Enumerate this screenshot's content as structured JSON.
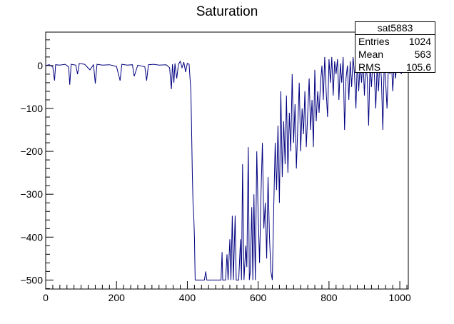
{
  "chart_data": {
    "type": "line",
    "title": "Saturation",
    "xlabel": "",
    "ylabel": "",
    "xlim": [
      0,
      1024
    ],
    "ylim": [
      -521,
      78
    ],
    "xticks": [
      0,
      200,
      400,
      600,
      800,
      1000
    ],
    "yticks": [
      0,
      -100,
      -200,
      -300,
      -400,
      -500
    ],
    "xtick_labels": [
      "0",
      "200",
      "400",
      "600",
      "800",
      "1000"
    ],
    "ytick_labels": [
      "0",
      "−100",
      "−200",
      "−300",
      "−400",
      "−500"
    ],
    "grid": false,
    "line_color": "#000080",
    "series": [
      {
        "points": [
          [
            0,
            0
          ],
          [
            10,
            2
          ],
          [
            20,
            -3
          ],
          [
            25,
            -35
          ],
          [
            28,
            2
          ],
          [
            40,
            1
          ],
          [
            55,
            3
          ],
          [
            65,
            -3
          ],
          [
            68,
            -45
          ],
          [
            72,
            3
          ],
          [
            85,
            1
          ],
          [
            90,
            -20
          ],
          [
            95,
            5
          ],
          [
            110,
            3
          ],
          [
            125,
            -10
          ],
          [
            135,
            2
          ],
          [
            140,
            -42
          ],
          [
            145,
            3
          ],
          [
            160,
            1
          ],
          [
            180,
            2
          ],
          [
            200,
            -2
          ],
          [
            210,
            -35
          ],
          [
            215,
            3
          ],
          [
            230,
            1
          ],
          [
            245,
            2
          ],
          [
            250,
            -25
          ],
          [
            260,
            1
          ],
          [
            280,
            -3
          ],
          [
            285,
            -35
          ],
          [
            290,
            2
          ],
          [
            305,
            3
          ],
          [
            320,
            1
          ],
          [
            340,
            2
          ],
          [
            350,
            -5
          ],
          [
            355,
            -55
          ],
          [
            358,
            3
          ],
          [
            362,
            -40
          ],
          [
            365,
            5
          ],
          [
            370,
            -30
          ],
          [
            375,
            3
          ],
          [
            380,
            10
          ],
          [
            385,
            -5
          ],
          [
            390,
            8
          ],
          [
            395,
            -15
          ],
          [
            400,
            5
          ],
          [
            405,
            3
          ],
          [
            410,
            -60
          ],
          [
            412,
            -150
          ],
          [
            414,
            -250
          ],
          [
            416,
            -320
          ],
          [
            418,
            -350
          ],
          [
            420,
            -400
          ],
          [
            422,
            -500
          ],
          [
            440,
            -500
          ],
          [
            448,
            -500
          ],
          [
            452,
            -480
          ],
          [
            455,
            -500
          ],
          [
            480,
            -500
          ],
          [
            495,
            -500
          ],
          [
            498,
            -435
          ],
          [
            500,
            -500
          ],
          [
            508,
            -500
          ],
          [
            512,
            -440
          ],
          [
            515,
            -500
          ],
          [
            520,
            -405
          ],
          [
            523,
            -500
          ],
          [
            527,
            -350
          ],
          [
            530,
            -500
          ],
          [
            535,
            -350
          ],
          [
            538,
            -500
          ],
          [
            545,
            -500
          ],
          [
            550,
            -405
          ],
          [
            553,
            -500
          ],
          [
            556,
            -230
          ],
          [
            560,
            -500
          ],
          [
            565,
            -420
          ],
          [
            568,
            -470
          ],
          [
            572,
            -190
          ],
          [
            575,
            -500
          ],
          [
            578,
            -480
          ],
          [
            582,
            -330
          ],
          [
            585,
            -500
          ],
          [
            588,
            -300
          ],
          [
            592,
            -500
          ],
          [
            596,
            -200
          ],
          [
            600,
            -350
          ],
          [
            604,
            -460
          ],
          [
            608,
            -300
          ],
          [
            612,
            -180
          ],
          [
            616,
            -380
          ],
          [
            620,
            -320
          ],
          [
            624,
            -450
          ],
          [
            628,
            -260
          ],
          [
            632,
            -400
          ],
          [
            636,
            -480
          ],
          [
            640,
            -500
          ],
          [
            644,
            -330
          ],
          [
            648,
            -180
          ],
          [
            652,
            -290
          ],
          [
            656,
            -140
          ],
          [
            660,
            -320
          ],
          [
            664,
            -60
          ],
          [
            668,
            -260
          ],
          [
            672,
            -130
          ],
          [
            676,
            -230
          ],
          [
            680,
            -70
          ],
          [
            684,
            -250
          ],
          [
            688,
            -110
          ],
          [
            692,
            -200
          ],
          [
            696,
            -20
          ],
          [
            700,
            -180
          ],
          [
            704,
            -90
          ],
          [
            708,
            -240
          ],
          [
            712,
            -140
          ],
          [
            716,
            -40
          ],
          [
            720,
            -200
          ],
          [
            724,
            -100
          ],
          [
            728,
            -160
          ],
          [
            732,
            -60
          ],
          [
            736,
            -190
          ],
          [
            740,
            -110
          ],
          [
            744,
            -30
          ],
          [
            748,
            -150
          ],
          [
            752,
            -80
          ],
          [
            756,
            -190
          ],
          [
            760,
            -10
          ],
          [
            764,
            -130
          ],
          [
            768,
            -60
          ],
          [
            772,
            -110
          ],
          [
            776,
            -40
          ],
          [
            780,
            0
          ],
          [
            784,
            -80
          ],
          [
            788,
            20
          ],
          [
            792,
            -60
          ],
          [
            796,
            -120
          ],
          [
            800,
            15
          ],
          [
            804,
            -40
          ],
          [
            808,
            20
          ],
          [
            812,
            -70
          ],
          [
            816,
            10
          ],
          [
            820,
            -20
          ],
          [
            824,
            15
          ],
          [
            828,
            -80
          ],
          [
            832,
            5
          ],
          [
            836,
            -40
          ],
          [
            840,
            20
          ],
          [
            844,
            -150
          ],
          [
            848,
            -30
          ],
          [
            852,
            0
          ],
          [
            856,
            -80
          ],
          [
            860,
            10
          ],
          [
            864,
            -50
          ],
          [
            868,
            20
          ],
          [
            872,
            -20
          ],
          [
            876,
            -100
          ],
          [
            880,
            15
          ],
          [
            884,
            -60
          ],
          [
            888,
            5
          ],
          [
            892,
            -40
          ],
          [
            896,
            20
          ],
          [
            900,
            -70
          ],
          [
            904,
            10
          ],
          [
            908,
            -30
          ],
          [
            912,
            -140
          ],
          [
            916,
            5
          ],
          [
            920,
            -50
          ],
          [
            924,
            15
          ],
          [
            928,
            -20
          ],
          [
            932,
            -100
          ],
          [
            936,
            0
          ],
          [
            940,
            -60
          ],
          [
            944,
            20
          ],
          [
            948,
            -30
          ],
          [
            952,
            -150
          ],
          [
            956,
            10
          ],
          [
            960,
            -40
          ],
          [
            964,
            -100
          ],
          [
            968,
            5
          ],
          [
            972,
            -20
          ],
          [
            976,
            15
          ],
          [
            980,
            -60
          ],
          [
            984,
            5
          ],
          [
            988,
            -30
          ],
          [
            992,
            10
          ],
          [
            996,
            -10
          ],
          [
            1000,
            0
          ],
          [
            1004,
            -20
          ],
          [
            1008,
            5
          ],
          [
            1012,
            -10
          ],
          [
            1016,
            0
          ],
          [
            1020,
            -5
          ],
          [
            1024,
            0
          ]
        ]
      }
    ]
  },
  "stats": {
    "name": "sat5883",
    "entries_label": "Entries",
    "entries_value": "1024",
    "mean_label": "Mean",
    "mean_value": "563",
    "rms_label": "RMS",
    "rms_value": "105.6"
  }
}
